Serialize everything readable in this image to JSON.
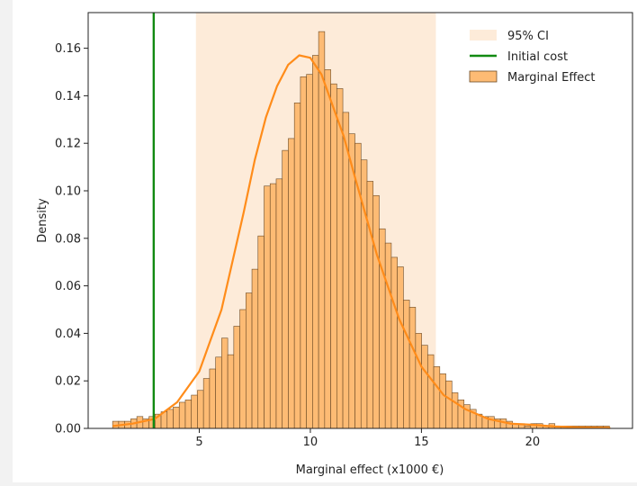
{
  "chart_data": {
    "type": "bar",
    "title": "",
    "xlabel": "Marginal effect (x1000 €)",
    "ylabel": "Density",
    "xlim": [
      0.0,
      24.5
    ],
    "ylim": [
      0.0,
      0.175
    ],
    "xticks": [
      5,
      10,
      15,
      20
    ],
    "xtick_labels": [
      "5",
      "10",
      "15",
      "20"
    ],
    "yticks": [
      0.0,
      0.02,
      0.04,
      0.06,
      0.08,
      0.1,
      0.12,
      0.14,
      0.16
    ],
    "ytick_labels": [
      "0.00",
      "0.02",
      "0.04",
      "0.06",
      "0.08",
      "0.10",
      "0.12",
      "0.14",
      "0.16"
    ],
    "grid": false,
    "legend_position": "top-right",
    "legend": [
      "95% CI",
      "Initial cost",
      "Marginal Effect"
    ],
    "ci_band": {
      "name": "95% CI",
      "range": [
        4.85,
        15.65
      ],
      "color": "#fdebd9"
    },
    "vline": {
      "name": "Initial cost",
      "x": 2.95,
      "color": "#118a11"
    },
    "histogram": {
      "name": "Marginal Effect",
      "bin_start": 1.1,
      "bin_width": 0.2727,
      "values": [
        0.003,
        0.003,
        0.003,
        0.004,
        0.005,
        0.004,
        0.005,
        0.006,
        0.007,
        0.008,
        0.009,
        0.011,
        0.012,
        0.014,
        0.016,
        0.021,
        0.025,
        0.03,
        0.038,
        0.031,
        0.043,
        0.05,
        0.057,
        0.067,
        0.081,
        0.102,
        0.103,
        0.105,
        0.117,
        0.122,
        0.137,
        0.148,
        0.149,
        0.157,
        0.167,
        0.151,
        0.145,
        0.143,
        0.133,
        0.124,
        0.12,
        0.113,
        0.104,
        0.098,
        0.084,
        0.078,
        0.072,
        0.068,
        0.054,
        0.051,
        0.04,
        0.035,
        0.031,
        0.026,
        0.023,
        0.02,
        0.015,
        0.012,
        0.01,
        0.008,
        0.006,
        0.005,
        0.005,
        0.004,
        0.004,
        0.003,
        0.002,
        0.002,
        0.001,
        0.002,
        0.002,
        0.001,
        0.002,
        0.001,
        0.001,
        0.001,
        0.001,
        0.001,
        0.001,
        0.001,
        0.001,
        0.001
      ],
      "fill": "#fdbb74",
      "edge": "#6b4a25"
    },
    "kde": {
      "color": "#ff8c1a",
      "x": [
        1.1,
        2.0,
        3.0,
        4.0,
        5.0,
        6.0,
        7.0,
        7.5,
        8.0,
        8.5,
        9.0,
        9.5,
        10.0,
        10.5,
        11.0,
        11.5,
        12.0,
        13.0,
        14.0,
        15.0,
        16.0,
        17.0,
        18.0,
        19.0,
        20.0,
        21.0,
        22.0,
        23.5
      ],
      "y": [
        0.001,
        0.002,
        0.004,
        0.011,
        0.024,
        0.05,
        0.091,
        0.113,
        0.131,
        0.144,
        0.153,
        0.157,
        0.156,
        0.149,
        0.136,
        0.123,
        0.106,
        0.073,
        0.046,
        0.026,
        0.014,
        0.008,
        0.004,
        0.002,
        0.0015,
        0.0008,
        0.0005,
        0.0002
      ]
    }
  }
}
